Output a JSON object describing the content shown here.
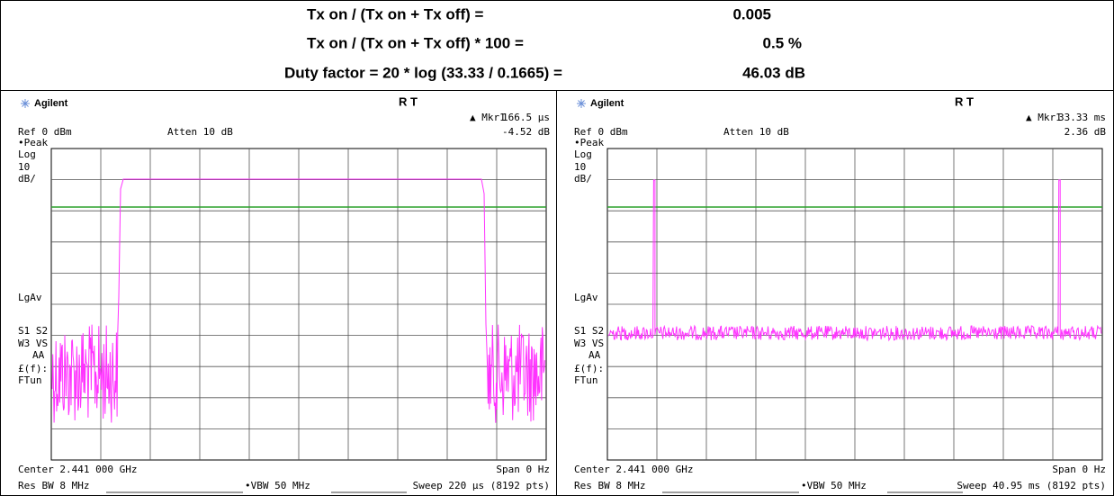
{
  "table": {
    "rows": [
      [
        "Tx on / (Tx on + Tx off) =",
        "0.005"
      ],
      [
        "Tx on / (Tx on + Tx off) * 100 =",
        "0.5 %"
      ],
      [
        "Duty factor = 20 * log (33.33 / 0.1665) =",
        "46.03 dB"
      ]
    ]
  },
  "screens": [
    {
      "brand": "Agilent",
      "status": "R  T",
      "marker": "▲ Mkr1",
      "marker_x": "166.5 μs",
      "ref": "Ref 0 dBm",
      "atten": "Atten 10 dB",
      "marker_y": "-4.52 dB",
      "side_labels": [
        "•Peak",
        "Log",
        "10",
        "dB/",
        "LgAv",
        "S1  S2",
        "W3  VS",
        "AA",
        "£(f):",
        "FTun"
      ],
      "center": "Center 2.441 000 GHz",
      "span": "Span 0 Hz",
      "rbw": "Res BW 8 MHz",
      "vbw": "•VBW 50 MHz",
      "sweep": "Sweep 220 μs (8192 pts)"
    },
    {
      "brand": "Agilent",
      "status": "R  T",
      "marker": "▲ Mkr1",
      "marker_x": "33.33 ms",
      "ref": "Ref 0 dBm",
      "atten": "Atten 10 dB",
      "marker_y": "2.36 dB",
      "side_labels": [
        "•Peak",
        "Log",
        "10",
        "dB/",
        "LgAv",
        "S1  S2",
        "W3  VS",
        "AA",
        "£(f):",
        "FTun"
      ],
      "center": "Center 2.441 000 GHz",
      "span": "Span 0 Hz",
      "rbw": "Res BW 8 MHz",
      "vbw": "•VBW 50 MHz",
      "sweep": "Sweep 40.95 ms (8192 pts)"
    }
  ]
}
